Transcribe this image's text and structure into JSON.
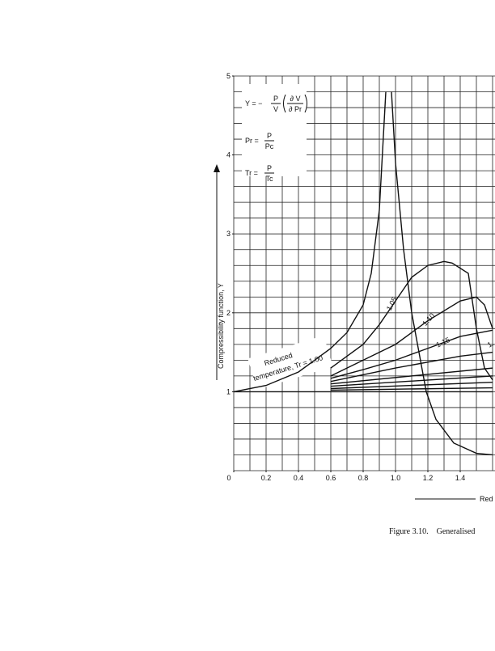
{
  "chart_data": {
    "type": "line",
    "ylabel": "Compressibility function, Y",
    "xlabel": "Red",
    "caption": "Figure 3.10.    Generalised",
    "xlim": [
      0,
      1.6
    ],
    "ylim": [
      0,
      5
    ],
    "xticks": [
      0,
      0.2,
      0.4,
      0.6,
      0.8,
      {
        "value": 1,
        "label": "1.0"
      },
      1.2,
      1.4
    ],
    "yticks": [
      1,
      2,
      3,
      4,
      5
    ],
    "grid": true,
    "grid_x": [
      0,
      0.1,
      0.2,
      0.3,
      0.4,
      0.5,
      0.6,
      0.7,
      0.8,
      0.9,
      1,
      1.1,
      1.2,
      1.3,
      1.4,
      1.5,
      1.6
    ],
    "grid_y": [
      0,
      0.2,
      0.4,
      0.6,
      0.8,
      1,
      1.2,
      1.4,
      1.6,
      1.8,
      2,
      2.2,
      2.4,
      2.6,
      2.8,
      3,
      3.2,
      3.4,
      3.6,
      3.8,
      4,
      4.2,
      4.4,
      4.6,
      4.8,
      5
    ],
    "formulas": [
      {
        "lhs": "Y = −",
        "num": "P",
        "den": "V",
        "num2": "∂ V",
        "den2": "∂ Pr"
      },
      {
        "lhs": "Pr =",
        "num": "P",
        "den": "Pc"
      },
      {
        "lhs": "Tr =",
        "num": "P",
        "den": "Tc"
      }
    ],
    "annotations": [
      "Reduced",
      "temperature, Tr = 1.00",
      "1.05",
      "1.10",
      "1.15",
      "1."
    ],
    "series": [
      {
        "color": "#111",
        "x": [
          0,
          0.2,
          0.4,
          0.6,
          0.7,
          0.8,
          0.85,
          0.9,
          0.94,
          null,
          0.975,
          1.0,
          1.05,
          1.1,
          1.19,
          1.25,
          1.36,
          1.5,
          1.6
        ],
        "values": [
          1,
          1.08,
          1.25,
          1.55,
          1.75,
          2.1,
          2.5,
          3.3,
          4.8,
          null,
          4.8,
          3.9,
          2.8,
          2.0,
          1.0,
          0.65,
          0.35,
          0.22,
          0.2
        ]
      },
      {
        "color": "#111",
        "x": [
          0.6,
          0.8,
          0.9,
          1.0,
          1.1,
          1.2,
          1.3,
          1.35,
          1.45,
          1.5,
          1.55,
          1.6
        ],
        "values": [
          1.3,
          1.6,
          1.85,
          2.15,
          2.45,
          2.6,
          2.65,
          2.63,
          2.5,
          1.8,
          1.3,
          1.15
        ]
      },
      {
        "color": "#111",
        "x": [
          0.6,
          0.8,
          1.0,
          1.2,
          1.4,
          1.5,
          1.55,
          1.6
        ],
        "values": [
          1.2,
          1.4,
          1.6,
          1.9,
          2.15,
          2.2,
          2.1,
          1.8
        ]
      },
      {
        "color": "#111",
        "x": [
          0.6,
          0.8,
          1.0,
          1.2,
          1.4,
          1.6
        ],
        "values": [
          1.17,
          1.28,
          1.4,
          1.55,
          1.7,
          1.78
        ]
      },
      {
        "color": "#111",
        "x": [
          0.6,
          1.0,
          1.4,
          1.6
        ],
        "values": [
          1.13,
          1.3,
          1.45,
          1.5
        ]
      },
      {
        "color": "#111",
        "x": [
          0.6,
          1.6
        ],
        "values": [
          1.1,
          1.3
        ]
      },
      {
        "color": "#111",
        "x": [
          0.6,
          1.6
        ],
        "values": [
          1.07,
          1.2
        ]
      },
      {
        "color": "#111",
        "x": [
          0.6,
          1.6
        ],
        "values": [
          1.04,
          1.12
        ]
      },
      {
        "color": "#111",
        "x": [
          0.6,
          1.6
        ],
        "values": [
          1.02,
          1.05
        ]
      },
      {
        "color": "#111",
        "x": [
          0,
          1.6
        ],
        "values": [
          1,
          1
        ]
      }
    ]
  }
}
